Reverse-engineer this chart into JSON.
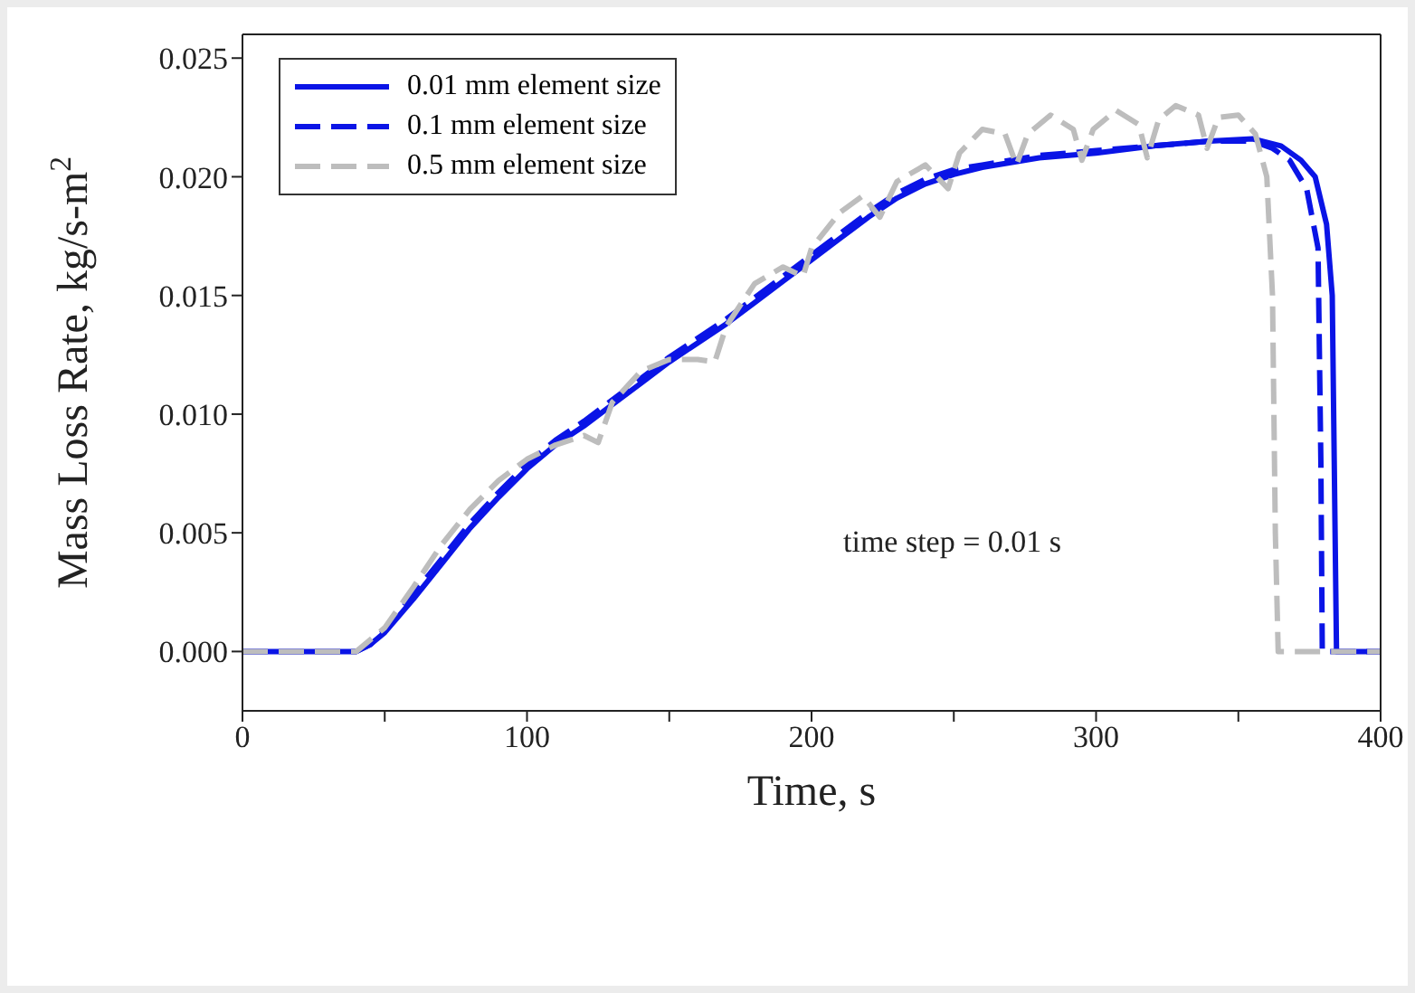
{
  "chart_data": {
    "type": "line",
    "xlabel": "Time, s",
    "ylabel": "Mass Loss Rate, kg/s-m$^{2}$",
    "xlim": [
      0,
      400
    ],
    "ylim": [
      -0.0025,
      0.026
    ],
    "xticks": [
      0,
      {
        "value": 50,
        "label": null
      },
      100,
      {
        "value": 150,
        "label": null
      },
      200,
      {
        "value": 250,
        "label": null
      },
      300,
      {
        "value": 350,
        "label": null
      },
      400
    ],
    "yticks": [
      {
        "value": 0,
        "label": "0.000"
      },
      {
        "value": 0.005,
        "label": "0.005"
      },
      {
        "value": 0.01,
        "label": "0.010"
      },
      {
        "value": 0.015,
        "label": "0.015"
      },
      {
        "value": 0.02,
        "label": "0.020"
      },
      {
        "value": 0.025,
        "label": "0.025"
      }
    ],
    "legend": "top left",
    "marker": "none",
    "annotations": [
      "time step = 0.01 s"
    ],
    "series": [
      {
        "name": "0.01 mm element size",
        "color": "#0a14e6",
        "line_style": "solid",
        "x": [
          0,
          40,
          45,
          50,
          60,
          70,
          80,
          90,
          100,
          110,
          120,
          130,
          140,
          150,
          160,
          170,
          180,
          190,
          200,
          210,
          220,
          230,
          240,
          250,
          260,
          280,
          300,
          320,
          340,
          355,
          365,
          372,
          377,
          381,
          383,
          384,
          384.5,
          400
        ],
        "values": [
          0,
          0,
          0.0003,
          0.0008,
          0.0022,
          0.0037,
          0.0052,
          0.0065,
          0.0077,
          0.0087,
          0.0095,
          0.0104,
          0.0113,
          0.0122,
          0.013,
          0.0138,
          0.0147,
          0.0156,
          0.0165,
          0.0174,
          0.0183,
          0.0191,
          0.0197,
          0.0201,
          0.0204,
          0.0208,
          0.021,
          0.0213,
          0.0215,
          0.0216,
          0.0213,
          0.0207,
          0.02,
          0.018,
          0.015,
          0.005,
          0,
          0
        ]
      },
      {
        "name": "0.1 mm element size",
        "color": "#0a14e6",
        "line_style": "dashed",
        "x": [
          0,
          40,
          45,
          50,
          60,
          70,
          80,
          90,
          100,
          110,
          120,
          130,
          140,
          150,
          160,
          170,
          180,
          190,
          200,
          210,
          220,
          230,
          240,
          250,
          260,
          280,
          300,
          320,
          340,
          355,
          362,
          368,
          374,
          378,
          379,
          379.5,
          400
        ],
        "values": [
          0,
          0,
          0.0003,
          0.0009,
          0.0024,
          0.0039,
          0.0054,
          0.0067,
          0.0079,
          0.0089,
          0.0097,
          0.0106,
          0.0115,
          0.0124,
          0.0132,
          0.014,
          0.0149,
          0.0158,
          0.0167,
          0.0176,
          0.0185,
          0.0193,
          0.0199,
          0.0203,
          0.0205,
          0.0209,
          0.0211,
          0.0213,
          0.0215,
          0.0215,
          0.0212,
          0.0207,
          0.0195,
          0.017,
          0.008,
          0,
          0
        ]
      },
      {
        "name": "0.5 mm element size",
        "color": "#bdbdbd",
        "line_style": "dashed",
        "x": [
          0,
          40,
          50,
          60,
          70,
          80,
          90,
          100,
          110,
          120,
          125,
          130,
          140,
          150,
          160,
          166,
          170,
          180,
          190,
          197,
          200,
          210,
          218,
          224,
          230,
          240,
          248,
          252,
          260,
          268,
          272,
          276,
          284,
          292,
          295,
          299,
          307,
          315,
          318,
          322,
          328,
          336,
          339,
          343,
          350,
          356,
          360,
          362,
          363,
          364,
          400
        ],
        "values": [
          0,
          0,
          0.001,
          0.0027,
          0.0045,
          0.006,
          0.0072,
          0.0081,
          0.0087,
          0.0091,
          0.0088,
          0.0105,
          0.0118,
          0.0123,
          0.0123,
          0.0122,
          0.0137,
          0.0155,
          0.0162,
          0.0158,
          0.017,
          0.0185,
          0.0192,
          0.0183,
          0.0198,
          0.0205,
          0.0195,
          0.021,
          0.022,
          0.0218,
          0.0205,
          0.0218,
          0.0226,
          0.022,
          0.0207,
          0.022,
          0.0228,
          0.0222,
          0.0208,
          0.0224,
          0.023,
          0.0226,
          0.0212,
          0.0225,
          0.0226,
          0.0218,
          0.02,
          0.015,
          0.005,
          0,
          0
        ]
      }
    ]
  }
}
